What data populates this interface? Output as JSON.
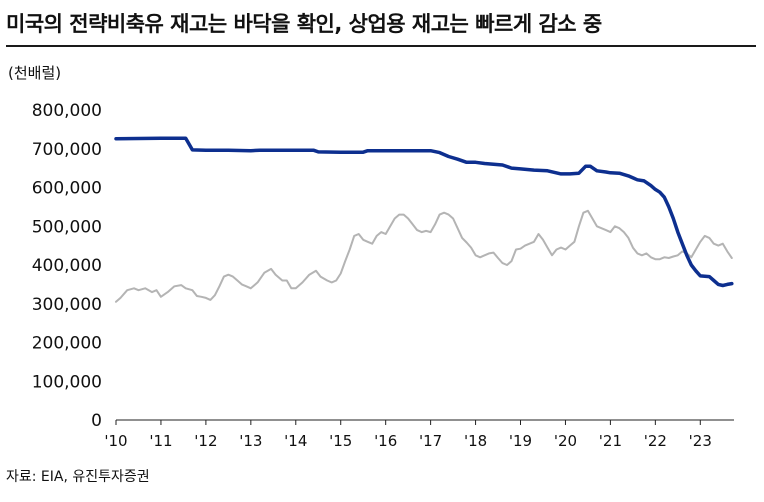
{
  "title": "미국의 전략비축유 재고는 바닥을 확인, 상업용 재고는 빠르게 감소 중",
  "unit": "(천배럴)",
  "source": "자료: EIA, 유진투자증권",
  "chart_data": {
    "type": "line",
    "title": "미국의 전략비축유 재고는 바닥을 확인, 상업용 재고는 빠르게 감소 중",
    "ylabel": "(천배럴)",
    "xlabel": "",
    "ylim": [
      0,
      800000
    ],
    "xlim": [
      2010.0,
      2023.75
    ],
    "grid": false,
    "y_ticks": [
      0,
      100000,
      200000,
      300000,
      400000,
      500000,
      600000,
      700000,
      800000
    ],
    "y_tick_labels": [
      "0",
      "100,000",
      "200,000",
      "300,000",
      "400,000",
      "500,000",
      "600,000",
      "700,000",
      "800,000"
    ],
    "x_ticks": [
      2010,
      2011,
      2012,
      2013,
      2014,
      2015,
      2016,
      2017,
      2018,
      2019,
      2020,
      2021,
      2022,
      2023
    ],
    "x_tick_labels": [
      "'10",
      "'11",
      "'12",
      "'13",
      "'14",
      "'15",
      "'16",
      "'17",
      "'18",
      "'19",
      "'20",
      "'21",
      "'22",
      "'23"
    ],
    "series": [
      {
        "color": "#0d2f8f",
        "points": [
          [
            2010.0,
            726000
          ],
          [
            2011.0,
            727000
          ],
          [
            2011.55,
            727000
          ],
          [
            2011.7,
            697000
          ],
          [
            2012.0,
            696000
          ],
          [
            2012.5,
            696000
          ],
          [
            2013.0,
            695000
          ],
          [
            2013.2,
            696000
          ],
          [
            2014.0,
            696000
          ],
          [
            2014.4,
            696000
          ],
          [
            2014.5,
            692000
          ],
          [
            2015.0,
            691000
          ],
          [
            2015.5,
            691000
          ],
          [
            2015.6,
            695000
          ],
          [
            2016.0,
            695000
          ],
          [
            2016.5,
            695000
          ],
          [
            2017.0,
            695000
          ],
          [
            2017.2,
            690000
          ],
          [
            2017.4,
            680000
          ],
          [
            2017.6,
            673000
          ],
          [
            2017.8,
            665000
          ],
          [
            2018.0,
            665000
          ],
          [
            2018.2,
            662000
          ],
          [
            2018.4,
            660000
          ],
          [
            2018.6,
            658000
          ],
          [
            2018.8,
            650000
          ],
          [
            2019.0,
            648000
          ],
          [
            2019.3,
            645000
          ],
          [
            2019.6,
            643000
          ],
          [
            2019.9,
            635000
          ],
          [
            2020.1,
            635000
          ],
          [
            2020.3,
            637000
          ],
          [
            2020.45,
            655000
          ],
          [
            2020.55,
            655000
          ],
          [
            2020.7,
            643000
          ],
          [
            2020.9,
            640000
          ],
          [
            2021.0,
            638000
          ],
          [
            2021.2,
            637000
          ],
          [
            2021.4,
            630000
          ],
          [
            2021.6,
            620000
          ],
          [
            2021.75,
            617000
          ],
          [
            2021.9,
            605000
          ],
          [
            2022.0,
            595000
          ],
          [
            2022.1,
            588000
          ],
          [
            2022.2,
            575000
          ],
          [
            2022.3,
            550000
          ],
          [
            2022.4,
            520000
          ],
          [
            2022.5,
            485000
          ],
          [
            2022.6,
            455000
          ],
          [
            2022.7,
            425000
          ],
          [
            2022.8,
            400000
          ],
          [
            2022.9,
            385000
          ],
          [
            2023.0,
            372000
          ],
          [
            2023.2,
            370000
          ],
          [
            2023.3,
            360000
          ],
          [
            2023.4,
            350000
          ],
          [
            2023.5,
            347000
          ],
          [
            2023.6,
            350000
          ],
          [
            2023.7,
            352000
          ]
        ]
      },
      {
        "color": "#b4b4b4",
        "points": [
          [
            2010.0,
            305000
          ],
          [
            2010.1,
            315000
          ],
          [
            2010.25,
            335000
          ],
          [
            2010.4,
            340000
          ],
          [
            2010.5,
            335000
          ],
          [
            2010.65,
            340000
          ],
          [
            2010.8,
            330000
          ],
          [
            2010.9,
            335000
          ],
          [
            2011.0,
            318000
          ],
          [
            2011.15,
            330000
          ],
          [
            2011.3,
            345000
          ],
          [
            2011.45,
            348000
          ],
          [
            2011.55,
            340000
          ],
          [
            2011.7,
            335000
          ],
          [
            2011.8,
            320000
          ],
          [
            2011.9,
            318000
          ],
          [
            2012.0,
            315000
          ],
          [
            2012.1,
            310000
          ],
          [
            2012.2,
            322000
          ],
          [
            2012.3,
            345000
          ],
          [
            2012.4,
            370000
          ],
          [
            2012.5,
            375000
          ],
          [
            2012.6,
            370000
          ],
          [
            2012.7,
            360000
          ],
          [
            2012.8,
            350000
          ],
          [
            2012.9,
            345000
          ],
          [
            2013.0,
            340000
          ],
          [
            2013.15,
            355000
          ],
          [
            2013.3,
            380000
          ],
          [
            2013.45,
            390000
          ],
          [
            2013.55,
            375000
          ],
          [
            2013.7,
            360000
          ],
          [
            2013.8,
            360000
          ],
          [
            2013.9,
            340000
          ],
          [
            2014.0,
            340000
          ],
          [
            2014.15,
            355000
          ],
          [
            2014.3,
            375000
          ],
          [
            2014.45,
            385000
          ],
          [
            2014.55,
            370000
          ],
          [
            2014.7,
            360000
          ],
          [
            2014.8,
            355000
          ],
          [
            2014.9,
            360000
          ],
          [
            2015.0,
            378000
          ],
          [
            2015.1,
            410000
          ],
          [
            2015.2,
            440000
          ],
          [
            2015.3,
            475000
          ],
          [
            2015.4,
            480000
          ],
          [
            2015.5,
            465000
          ],
          [
            2015.6,
            460000
          ],
          [
            2015.7,
            455000
          ],
          [
            2015.8,
            475000
          ],
          [
            2015.9,
            485000
          ],
          [
            2016.0,
            480000
          ],
          [
            2016.1,
            500000
          ],
          [
            2016.2,
            520000
          ],
          [
            2016.3,
            530000
          ],
          [
            2016.4,
            530000
          ],
          [
            2016.5,
            520000
          ],
          [
            2016.6,
            505000
          ],
          [
            2016.7,
            490000
          ],
          [
            2016.8,
            485000
          ],
          [
            2016.9,
            488000
          ],
          [
            2017.0,
            485000
          ],
          [
            2017.1,
            505000
          ],
          [
            2017.2,
            530000
          ],
          [
            2017.3,
            535000
          ],
          [
            2017.4,
            530000
          ],
          [
            2017.5,
            520000
          ],
          [
            2017.6,
            495000
          ],
          [
            2017.7,
            470000
          ],
          [
            2017.8,
            458000
          ],
          [
            2017.9,
            445000
          ],
          [
            2018.0,
            425000
          ],
          [
            2018.1,
            420000
          ],
          [
            2018.2,
            425000
          ],
          [
            2018.3,
            430000
          ],
          [
            2018.4,
            432000
          ],
          [
            2018.5,
            418000
          ],
          [
            2018.6,
            405000
          ],
          [
            2018.7,
            400000
          ],
          [
            2018.8,
            410000
          ],
          [
            2018.9,
            440000
          ],
          [
            2019.0,
            442000
          ],
          [
            2019.1,
            450000
          ],
          [
            2019.2,
            455000
          ],
          [
            2019.3,
            460000
          ],
          [
            2019.4,
            480000
          ],
          [
            2019.5,
            465000
          ],
          [
            2019.6,
            445000
          ],
          [
            2019.7,
            425000
          ],
          [
            2019.8,
            440000
          ],
          [
            2019.9,
            445000
          ],
          [
            2020.0,
            440000
          ],
          [
            2020.1,
            450000
          ],
          [
            2020.2,
            460000
          ],
          [
            2020.3,
            500000
          ],
          [
            2020.4,
            535000
          ],
          [
            2020.5,
            540000
          ],
          [
            2020.6,
            520000
          ],
          [
            2020.7,
            500000
          ],
          [
            2020.8,
            495000
          ],
          [
            2020.9,
            490000
          ],
          [
            2021.0,
            485000
          ],
          [
            2021.1,
            500000
          ],
          [
            2021.2,
            495000
          ],
          [
            2021.3,
            485000
          ],
          [
            2021.4,
            470000
          ],
          [
            2021.5,
            445000
          ],
          [
            2021.6,
            430000
          ],
          [
            2021.7,
            425000
          ],
          [
            2021.8,
            430000
          ],
          [
            2021.9,
            420000
          ],
          [
            2022.0,
            415000
          ],
          [
            2022.1,
            415000
          ],
          [
            2022.2,
            420000
          ],
          [
            2022.3,
            418000
          ],
          [
            2022.4,
            422000
          ],
          [
            2022.5,
            425000
          ],
          [
            2022.6,
            435000
          ],
          [
            2022.7,
            430000
          ],
          [
            2022.8,
            420000
          ],
          [
            2022.9,
            440000
          ],
          [
            2023.0,
            460000
          ],
          [
            2023.1,
            475000
          ],
          [
            2023.2,
            470000
          ],
          [
            2023.3,
            455000
          ],
          [
            2023.4,
            450000
          ],
          [
            2023.5,
            455000
          ],
          [
            2023.6,
            435000
          ],
          [
            2023.7,
            418000
          ]
        ]
      }
    ]
  }
}
